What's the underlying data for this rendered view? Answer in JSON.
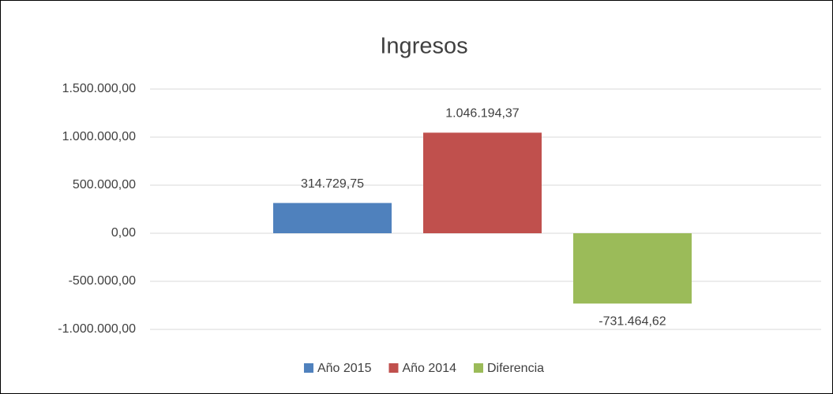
{
  "chart_data": {
    "type": "bar",
    "title": "Ingresos",
    "categories": [
      null
    ],
    "series": [
      {
        "name": "Año 2015",
        "color": "#4f81bd",
        "values": [
          314729.75
        ],
        "value_labels": [
          "314.729,75"
        ]
      },
      {
        "name": "Año 2014",
        "color": "#c0504d",
        "values": [
          1046194.37
        ],
        "value_labels": [
          "1.046.194,37"
        ]
      },
      {
        "name": "Diferencia",
        "color": "#9bbb59",
        "values": [
          -731464.62
        ],
        "value_labels": [
          "-731.464,62"
        ]
      }
    ],
    "ylim": [
      -1000000,
      1500000
    ],
    "yticks": [
      {
        "value": -1000000,
        "label": "-1.000.000,00"
      },
      {
        "value": -500000,
        "label": "-500.000,00"
      },
      {
        "value": 0,
        "label": "0,00"
      },
      {
        "value": 500000,
        "label": "500.000,00"
      },
      {
        "value": 1000000,
        "label": "1.000.000,00"
      },
      {
        "value": 1500000,
        "label": "1.500.000,00"
      }
    ],
    "grid": true,
    "legend": "bottom"
  }
}
